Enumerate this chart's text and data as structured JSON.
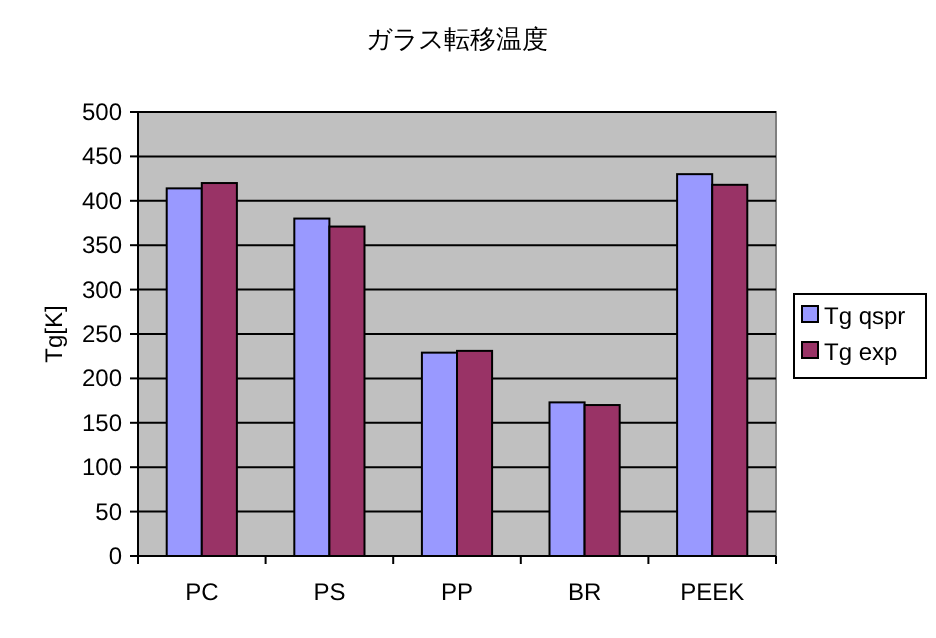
{
  "chart_data": {
    "type": "bar",
    "title": "ガラス転移温度",
    "ylabel": "Tg[K]",
    "categories": [
      "PC",
      "PS",
      "PP",
      "BR",
      "PEEK"
    ],
    "series": [
      {
        "name": "Tg qspr",
        "color": "#9999ff",
        "values": [
          414,
          380,
          229,
          173,
          430
        ]
      },
      {
        "name": "Tg exp",
        "color": "#993366",
        "values": [
          420,
          371,
          231,
          170,
          418
        ]
      }
    ],
    "ylim": [
      0,
      500
    ],
    "yticks": [
      0,
      50,
      100,
      150,
      200,
      250,
      300,
      350,
      400,
      450,
      500
    ],
    "grid": "y",
    "legend": "right"
  }
}
